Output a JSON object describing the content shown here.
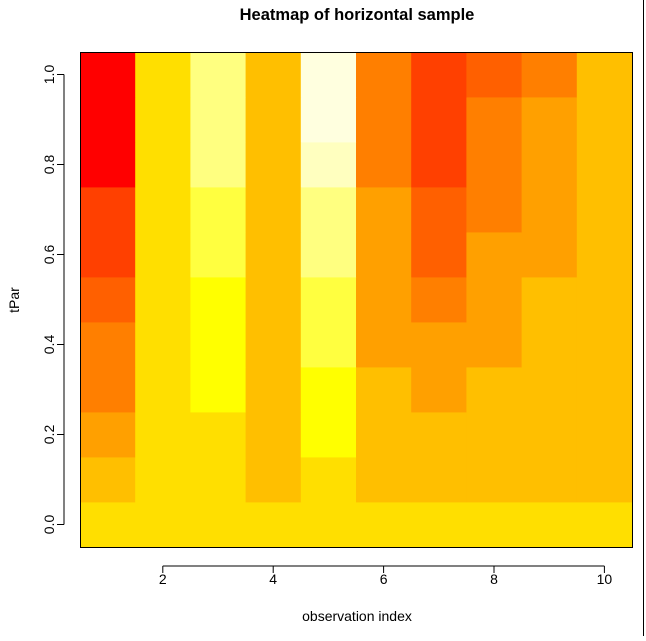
{
  "chart_data": {
    "type": "heatmap",
    "title": "Heatmap of horizontal sample",
    "xlabel": "observation index",
    "ylabel": "tPar",
    "x": [
      1,
      2,
      3,
      4,
      5,
      6,
      7,
      8,
      9,
      10
    ],
    "y": [
      0.0,
      0.1,
      0.2,
      0.3,
      0.4,
      0.5,
      0.6,
      0.7,
      0.8,
      0.9,
      1.0
    ],
    "xlim": [
      0.5,
      10.5
    ],
    "ylim": [
      -0.05,
      1.05
    ],
    "x_ticks": [
      "2",
      "4",
      "6",
      "8",
      "10"
    ],
    "x_tick_values": [
      2,
      4,
      6,
      8,
      10
    ],
    "y_ticks": [
      "0.0",
      "0.2",
      "0.4",
      "0.6",
      "0.8",
      "1.0"
    ],
    "y_tick_values": [
      0.0,
      0.2,
      0.4,
      0.6,
      0.8,
      1.0
    ],
    "colors": [
      "#FF0000",
      "#FF4000",
      "#FF6000",
      "#FF7F00",
      "#FFA000",
      "#FFBF00",
      "#FFDF00",
      "#FFFF00",
      "#FFFF40",
      "#FFFF80",
      "#FFFFBF",
      "#FFFFDF"
    ],
    "grid": false,
    "rows_color_index": [
      [
        6,
        6,
        6,
        6,
        6,
        6,
        6,
        6,
        6,
        6
      ],
      [
        5,
        6,
        6,
        5,
        6,
        5,
        5,
        5,
        5,
        5
      ],
      [
        4,
        6,
        6,
        5,
        7,
        5,
        5,
        5,
        5,
        5
      ],
      [
        3,
        6,
        7,
        5,
        7,
        5,
        4,
        5,
        5,
        5
      ],
      [
        3,
        6,
        7,
        5,
        8,
        4,
        4,
        4,
        5,
        5
      ],
      [
        2,
        6,
        7,
        5,
        8,
        4,
        3,
        4,
        5,
        5
      ],
      [
        1,
        6,
        8,
        5,
        9,
        4,
        2,
        4,
        4,
        5
      ],
      [
        1,
        6,
        8,
        5,
        9,
        4,
        2,
        3,
        4,
        5
      ],
      [
        0,
        6,
        9,
        5,
        10,
        3,
        1,
        3,
        4,
        5
      ],
      [
        0,
        6,
        9,
        5,
        11,
        3,
        1,
        3,
        4,
        5
      ],
      [
        0,
        6,
        9,
        5,
        11,
        3,
        1,
        2,
        3,
        5
      ]
    ]
  }
}
